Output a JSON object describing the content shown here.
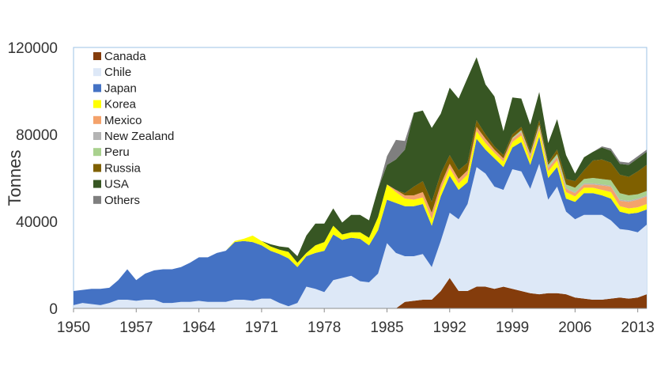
{
  "chart_data": {
    "type": "area",
    "stacked": true,
    "title": "",
    "xlabel": "",
    "ylabel": "Tonnes",
    "ylim": [
      0,
      120000
    ],
    "yticks": [
      0,
      40000,
      80000,
      120000
    ],
    "xlim": [
      1950,
      2014
    ],
    "xticks": [
      1950,
      1957,
      1964,
      1971,
      1978,
      1985,
      1992,
      1999,
      2006,
      2013
    ],
    "grid": false,
    "legend_position": "top-left",
    "x": [
      1950,
      1951,
      1952,
      1953,
      1954,
      1955,
      1956,
      1957,
      1958,
      1959,
      1960,
      1961,
      1962,
      1963,
      1964,
      1965,
      1966,
      1967,
      1968,
      1969,
      1970,
      1971,
      1972,
      1973,
      1974,
      1975,
      1976,
      1977,
      1978,
      1979,
      1980,
      1981,
      1982,
      1983,
      1984,
      1985,
      1986,
      1987,
      1988,
      1989,
      1990,
      1991,
      1992,
      1993,
      1994,
      1995,
      1996,
      1997,
      1998,
      1999,
      2000,
      2001,
      2002,
      2003,
      2004,
      2005,
      2006,
      2007,
      2008,
      2009,
      2010,
      2011,
      2012,
      2013,
      2014
    ],
    "series": [
      {
        "name": "Canada",
        "color": "#843c0c",
        "values": [
          0,
          0,
          0,
          0,
          0,
          0,
          0,
          0,
          0,
          0,
          0,
          0,
          0,
          0,
          0,
          0,
          0,
          0,
          0,
          0,
          0,
          0,
          0,
          0,
          0,
          0,
          0,
          0,
          0,
          0,
          0,
          0,
          0,
          0,
          0,
          0,
          0,
          3000,
          3500,
          4000,
          4000,
          8000,
          14000,
          8000,
          8000,
          10000,
          10000,
          9000,
          10000,
          9000,
          8000,
          7000,
          6500,
          7000,
          7000,
          6500,
          5000,
          4500,
          4000,
          4000,
          4500,
          5000,
          4500,
          5000,
          6500
        ]
      },
      {
        "name": "Chile",
        "color": "#dde8f7",
        "values": [
          1500,
          2500,
          2000,
          1500,
          2500,
          4000,
          4000,
          3500,
          4000,
          4000,
          2500,
          2500,
          3000,
          3000,
          3500,
          3000,
          3000,
          3000,
          4000,
          4000,
          3500,
          4500,
          4500,
          2500,
          1000,
          2500,
          10000,
          9000,
          7500,
          13000,
          14000,
          15000,
          12500,
          12000,
          16000,
          30000,
          25500,
          21000,
          20500,
          21000,
          15000,
          23000,
          30000,
          33000,
          40000,
          55000,
          52000,
          47000,
          44500,
          55000,
          55000,
          48000,
          60000,
          43000,
          49000,
          38000,
          36000,
          38500,
          39000,
          39000,
          36000,
          31500,
          31500,
          30000,
          32000
        ]
      },
      {
        "name": "Japan",
        "color": "#4472c4",
        "values": [
          6500,
          6000,
          7000,
          7500,
          7000,
          9000,
          14000,
          9500,
          12000,
          13500,
          15500,
          15500,
          16000,
          18000,
          20000,
          20500,
          22500,
          23500,
          26500,
          27000,
          27000,
          24500,
          22000,
          22500,
          22000,
          16500,
          14000,
          16500,
          19000,
          21000,
          17500,
          17500,
          19500,
          17000,
          20000,
          20000,
          23000,
          23000,
          23000,
          23000,
          19000,
          20500,
          17000,
          13500,
          10000,
          13000,
          11000,
          13000,
          10500,
          10000,
          13500,
          11000,
          12500,
          10000,
          9000,
          6000,
          8000,
          10000,
          10000,
          9000,
          10000,
          8000,
          7500,
          9000,
          7000
        ]
      },
      {
        "name": "Korea",
        "color": "#ffff00",
        "values": [
          0,
          0,
          0,
          0,
          0,
          0,
          0,
          0,
          0,
          0,
          0,
          0,
          0,
          0,
          0,
          0,
          0,
          0,
          500,
          1000,
          3000,
          2000,
          2000,
          2000,
          3000,
          2000,
          1500,
          3500,
          4000,
          4000,
          2500,
          2500,
          3000,
          3500,
          6000,
          7000,
          5000,
          3500,
          3000,
          3000,
          3000,
          3000,
          3500,
          3000,
          3500,
          3500,
          3000,
          2500,
          2500,
          2500,
          3000,
          2500,
          3000,
          3000,
          3000,
          3000,
          2500,
          2500,
          2500,
          2500,
          3000,
          2500,
          2500,
          2500,
          2500
        ]
      },
      {
        "name": "Mexico",
        "color": "#f4a26b",
        "values": [
          0,
          0,
          0,
          0,
          0,
          0,
          0,
          0,
          0,
          0,
          0,
          0,
          0,
          0,
          0,
          0,
          0,
          0,
          0,
          0,
          0,
          0,
          0,
          0,
          0,
          0,
          0,
          0,
          0,
          0,
          0,
          0,
          0,
          0,
          0,
          0,
          1000,
          1500,
          2000,
          2500,
          3000,
          2500,
          2000,
          2000,
          2000,
          2000,
          2000,
          1500,
          1500,
          1500,
          1500,
          1500,
          1500,
          1500,
          1500,
          1500,
          1500,
          1500,
          1500,
          2000,
          2500,
          2500,
          3000,
          3500,
          3500
        ]
      },
      {
        "name": "New Zealand",
        "color": "#b4b4b4",
        "values": [
          0,
          0,
          0,
          0,
          0,
          0,
          0,
          0,
          0,
          0,
          0,
          0,
          0,
          0,
          0,
          0,
          0,
          0,
          0,
          0,
          0,
          0,
          0,
          0,
          0,
          0,
          0,
          0,
          0,
          0,
          0,
          0,
          0,
          0,
          0,
          0,
          0,
          0,
          0,
          0,
          0,
          0,
          0,
          0,
          0,
          0,
          0,
          0,
          0,
          0,
          500,
          500,
          500,
          500,
          500,
          500,
          500,
          500,
          500,
          500,
          500,
          500,
          500,
          500,
          500
        ]
      },
      {
        "name": "Peru",
        "color": "#a9d18e",
        "values": [
          0,
          0,
          0,
          0,
          0,
          0,
          0,
          0,
          0,
          0,
          0,
          0,
          0,
          0,
          0,
          0,
          0,
          0,
          0,
          0,
          0,
          0,
          0,
          0,
          0,
          0,
          0,
          0,
          0,
          0,
          0,
          0,
          0,
          0,
          0,
          0,
          0,
          0,
          0,
          0,
          0,
          0,
          0,
          0,
          0,
          0,
          0,
          0,
          0,
          500,
          500,
          500,
          500,
          1000,
          1000,
          1500,
          2000,
          2000,
          2500,
          2500,
          2500,
          3000,
          2500,
          2000,
          2000
        ]
      },
      {
        "name": "Russia",
        "color": "#7f6000",
        "values": [
          0,
          0,
          0,
          0,
          0,
          0,
          0,
          0,
          0,
          0,
          0,
          0,
          0,
          0,
          0,
          0,
          0,
          0,
          0,
          0,
          0,
          0,
          0,
          0,
          0,
          0,
          0,
          0,
          0,
          0,
          0,
          0,
          0,
          0,
          0,
          0,
          0,
          1000,
          4000,
          5000,
          5000,
          5000,
          4000,
          4000,
          3500,
          3000,
          2000,
          1500,
          1500,
          1500,
          1500,
          1500,
          2000,
          1000,
          2000,
          2500,
          3000,
          4000,
          8000,
          9000,
          8000,
          8500,
          8500,
          10500,
          12000
        ]
      },
      {
        "name": "USA",
        "color": "#375623",
        "values": [
          0,
          0,
          0,
          0,
          0,
          0,
          0,
          0,
          0,
          0,
          0,
          0,
          0,
          0,
          0,
          0,
          0,
          0,
          0,
          0,
          0,
          0,
          1000,
          1500,
          2000,
          3000,
          8000,
          10000,
          8500,
          8000,
          5500,
          8000,
          8000,
          8000,
          13000,
          9000,
          14000,
          20000,
          34000,
          32500,
          34000,
          27500,
          31000,
          33000,
          39000,
          29000,
          23000,
          23000,
          11000,
          17000,
          13000,
          12000,
          13000,
          9000,
          14000,
          11000,
          3500,
          6000,
          4000,
          5500,
          5500,
          5000,
          5500,
          6000,
          6000
        ]
      },
      {
        "name": "Others",
        "color": "#7f7f7f",
        "values": [
          0,
          0,
          0,
          0,
          0,
          0,
          0,
          0,
          0,
          0,
          0,
          0,
          0,
          0,
          0,
          0,
          0,
          0,
          0,
          0,
          0,
          0,
          0,
          0,
          0,
          0,
          0,
          0,
          0,
          0,
          0,
          0,
          0,
          0,
          0,
          4000,
          9000,
          4000,
          0,
          0,
          0,
          0,
          0,
          0,
          0,
          0,
          0,
          0,
          0,
          0,
          0,
          0,
          0,
          0,
          0,
          0,
          0,
          0,
          0,
          500,
          1000,
          1000,
          1000,
          1000,
          1000
        ]
      }
    ]
  }
}
